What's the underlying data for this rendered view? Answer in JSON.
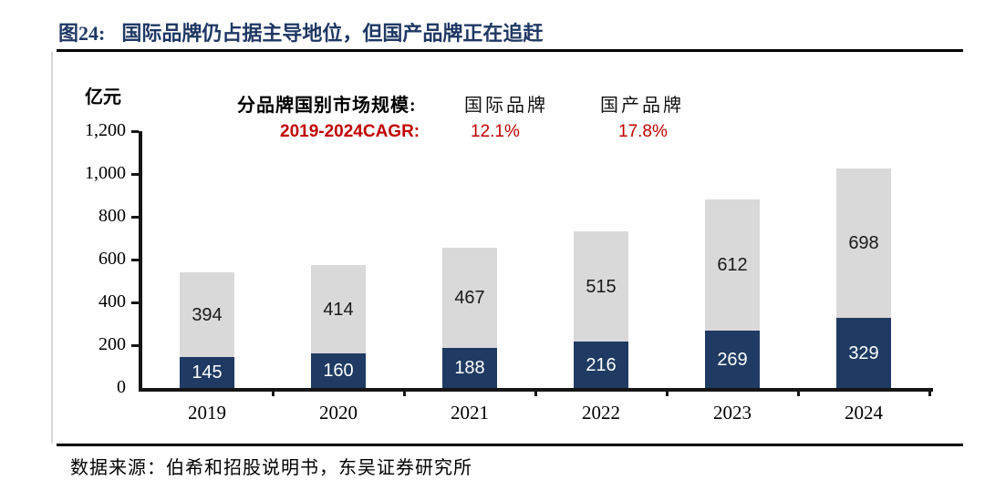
{
  "page": {
    "figure_label": "图24:",
    "figure_title": "国际品牌仍占据主导地位，但国产品牌正在追赶",
    "source_note": "数据来源：伯希和招股说明书，东吴证券研究所"
  },
  "chart_data": {
    "type": "bar",
    "stacked": true,
    "title": "分品牌国别市场规模:",
    "unit": "亿元",
    "categories": [
      "2019",
      "2020",
      "2021",
      "2022",
      "2023",
      "2024"
    ],
    "series": [
      {
        "name": "国际品牌",
        "color": "#d9d9d9",
        "label_color": "#1a1a1a",
        "stack_position": "top",
        "values": [
          394,
          414,
          467,
          515,
          612,
          698
        ]
      },
      {
        "name": "国产品牌",
        "color": "#1f3b63",
        "label_color": "#ffffff",
        "stack_position": "bottom",
        "values": [
          145,
          160,
          188,
          216,
          269,
          329
        ]
      }
    ],
    "cagr": {
      "label": "2019-2024CAGR:",
      "values": [
        "12.1%",
        "17.8%"
      ],
      "color": "#c00000"
    },
    "ylim": [
      0,
      1200
    ],
    "ytick_step": 200,
    "ytick_labels": [
      "0",
      "200",
      "400",
      "600",
      "800",
      "1,000",
      "1,200"
    ],
    "legend_position": "top",
    "grid": false
  }
}
